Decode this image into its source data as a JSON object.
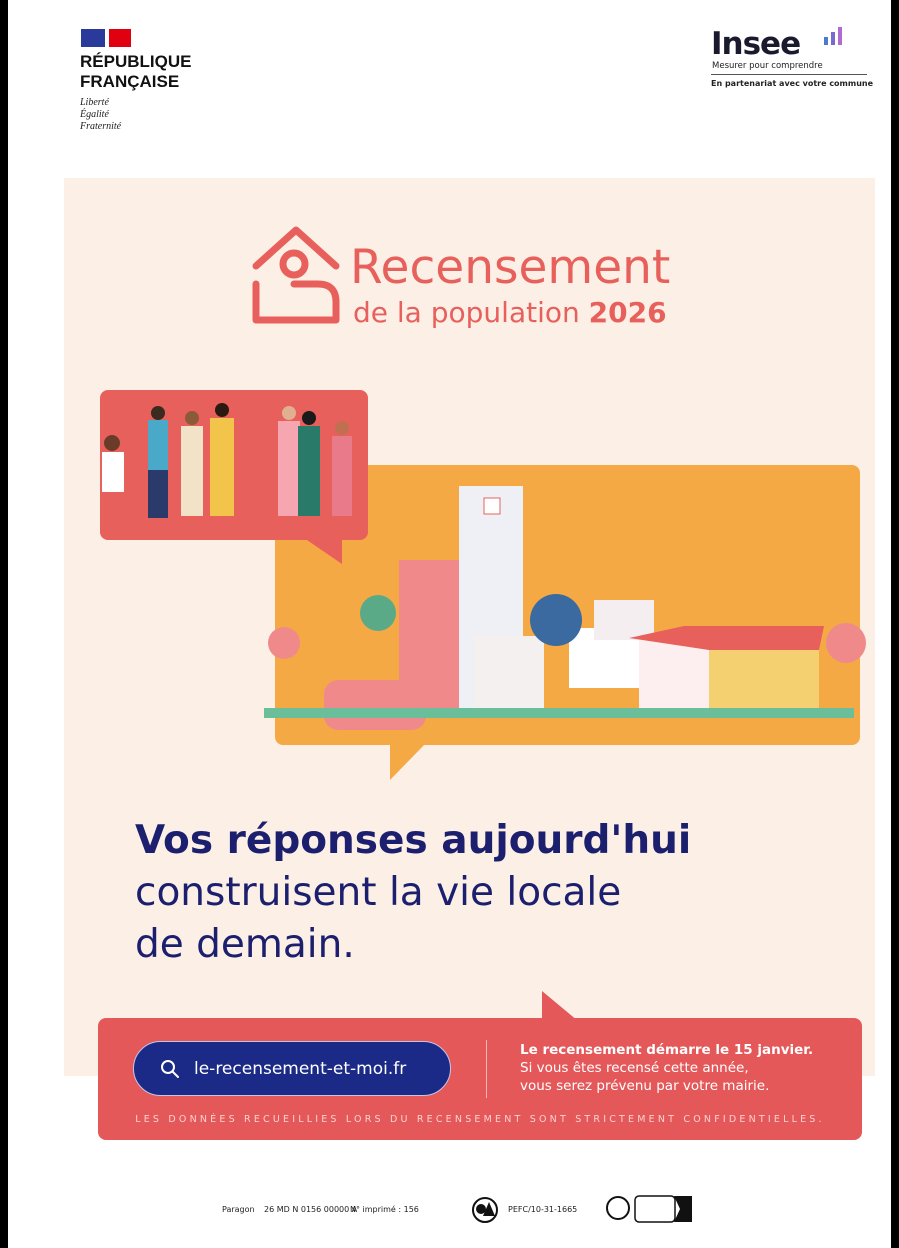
{
  "header": {
    "republique_line1": "RÉPUBLIQUE",
    "republique_line2": "FRANÇAISE",
    "motto": [
      "Liberté",
      "Égalité",
      "Fraternité"
    ],
    "insee_logo": "Insee",
    "insee_tagline": "Mesurer pour comprendre",
    "insee_partner": "En partenariat avec votre commune"
  },
  "title": {
    "main": "Recensement",
    "sub": "de la population ",
    "year": "2026",
    "icon": "house-person-icon"
  },
  "headline": {
    "line1": "Vos réponses aujourd'hui",
    "line2": "construisent la vie locale",
    "line3": "de demain."
  },
  "footer": {
    "search_icon": "search-icon",
    "url": "le-recensement-et-moi.fr",
    "info_bold": "Le recensement démarre le 15 janvier.",
    "info_line2": "Si vous êtes recensé cette année,",
    "info_line3": "vous serez prévenu par votre mairie.",
    "confidential": "LES DONNÉES RECUEILLIES LORS DU RECENSEMENT SONT STRICTEMENT CONFIDENTIELLES."
  },
  "printing": {
    "printer": "Paragon",
    "ref": "26 MD N 0156 00000 A",
    "printed": "N° imprimé : 156",
    "pefc": "PEFC/10-31-1665"
  },
  "colors": {
    "coral": "#e8605c",
    "orange": "#f5a945",
    "navy": "#1c1f6e",
    "cream": "#fbefe6"
  }
}
